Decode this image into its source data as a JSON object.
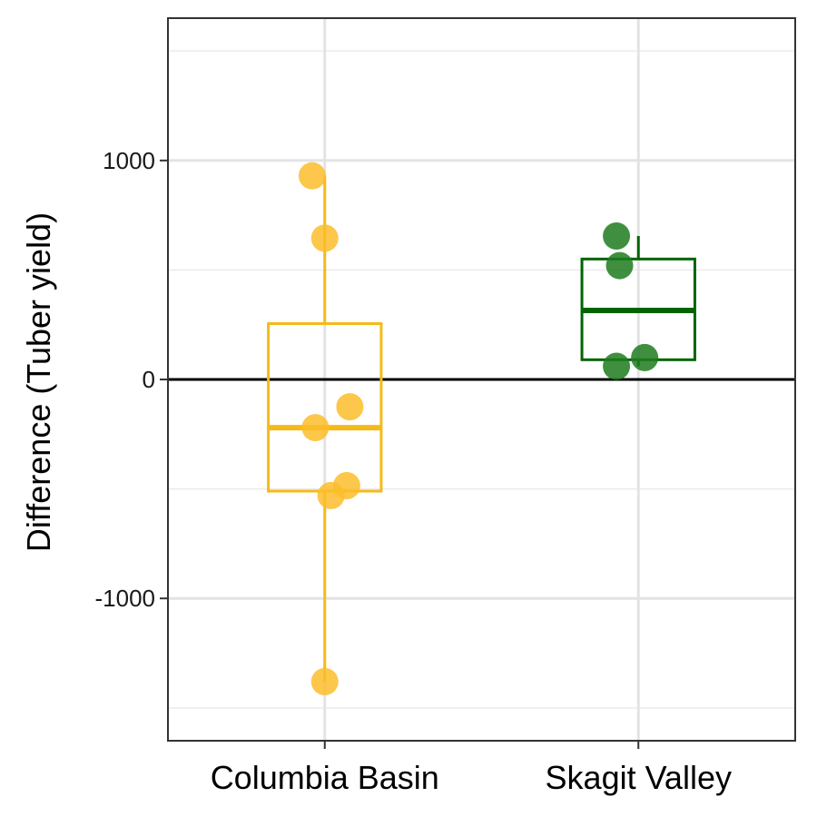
{
  "chart_data": {
    "type": "boxplot",
    "title": "",
    "xlabel": "",
    "ylabel": "Difference (Tuber yield)",
    "ylim": [
      -1650,
      1650
    ],
    "yticks": [
      -1000,
      0,
      1000
    ],
    "ytick_labels": [
      "-1000",
      "0",
      "1000"
    ],
    "y_minor_gridlines": [
      -1500,
      -500,
      500,
      1500
    ],
    "reference_line": 0,
    "grid": true,
    "categories": [
      "Columbia Basin",
      "Skagit Valley"
    ],
    "groups": [
      {
        "name": "Columbia Basin",
        "color": "#F5BA18",
        "point_color": "#FBBD2A",
        "box": {
          "min": -1380,
          "q1": -510,
          "median": -220,
          "q3": 255,
          "max": 930
        },
        "points": [
          {
            "x": -0.04,
            "y": 930
          },
          {
            "x": 0.0,
            "y": 645
          },
          {
            "x": 0.08,
            "y": -125
          },
          {
            "x": -0.03,
            "y": -220
          },
          {
            "x": 0.07,
            "y": -485
          },
          {
            "x": 0.02,
            "y": -530
          },
          {
            "x": 0.0,
            "y": -1380
          }
        ]
      },
      {
        "name": "Skagit Valley",
        "color": "#006400",
        "point_color": "#1E7B1E",
        "box": {
          "min": 60,
          "q1": 90,
          "median": 315,
          "q3": 550,
          "max": 655
        },
        "points": [
          {
            "x": -0.07,
            "y": 655
          },
          {
            "x": -0.06,
            "y": 520
          },
          {
            "x": 0.02,
            "y": 100
          },
          {
            "x": -0.07,
            "y": 60
          }
        ]
      }
    ]
  }
}
